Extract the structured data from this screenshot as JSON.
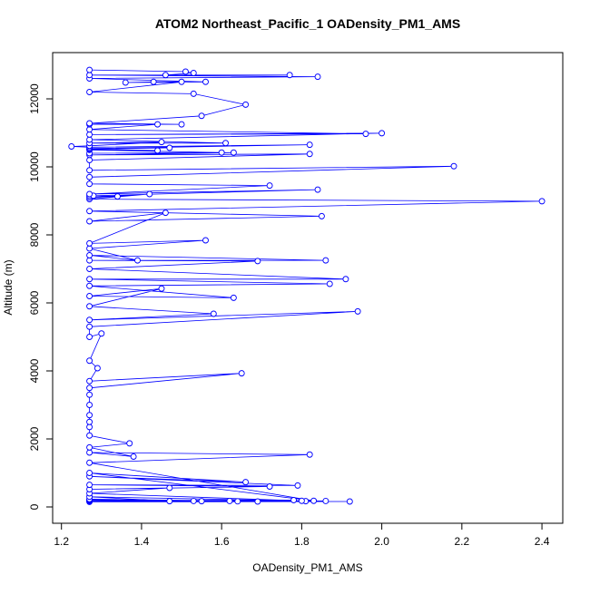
{
  "chart_data": {
    "type": "line",
    "title": "ATOM2 Northeast_Pacific_1 OADensity_PM1_AMS",
    "x_label": "OADensity_PM1_AMS",
    "y_label": "Altitude (m)",
    "xlim": [
      1.178,
      2.452
    ],
    "ylim": [
      -480,
      13360
    ],
    "xticks": [
      1.2,
      1.4,
      1.6,
      1.8,
      {
        "value": 2,
        "label": "2.0"
      },
      2.2,
      2.4
    ],
    "yticks": [
      0,
      2000,
      4000,
      6000,
      8000,
      10000,
      12000
    ],
    "series": [
      {
        "color": "#0000ff",
        "x": [
          1.27,
          1.92,
          1.27,
          1.86,
          1.27,
          1.81,
          1.27,
          1.78,
          1.69,
          1.27,
          1.64,
          1.62,
          1.27,
          1.55,
          1.53,
          1.47,
          1.27,
          1.8,
          1.27,
          1.47,
          1.27,
          1.72,
          1.27,
          1.79,
          1.27,
          1.66,
          1.27,
          1.83,
          1.27,
          1.82,
          1.27,
          1.38,
          1.27,
          1.37,
          1.27,
          1.27,
          1.27,
          1.27,
          1.27,
          1.27,
          1.27,
          1.65,
          1.27,
          1.29,
          1.27,
          1.3,
          1.27,
          1.27,
          1.94,
          1.27,
          1.58,
          1.27,
          1.45,
          1.27,
          1.63,
          1.27,
          1.87,
          1.27,
          1.91,
          1.27,
          1.69,
          1.27,
          1.86,
          1.27,
          1.39,
          1.27,
          1.56,
          1.27,
          1.46,
          1.27,
          1.85,
          1.27,
          2.4,
          1.27,
          1.42,
          1.27,
          1.34,
          1.27,
          1.28,
          1.84,
          1.27,
          1.72,
          1.27,
          1.27,
          2.18,
          1.27,
          1.27,
          1.82,
          1.27,
          1.63,
          1.27,
          1.6,
          1.27,
          1.44,
          1.27,
          1.47,
          1.27,
          1.82,
          1.27,
          1.225,
          1.27,
          1.45,
          1.27,
          1.61,
          1.27,
          2.0,
          1.27,
          1.96,
          1.27,
          1.44,
          1.27,
          1.5,
          1.27,
          1.55,
          1.66,
          1.53,
          1.27,
          1.5,
          1.43,
          1.36,
          1.56,
          1.27,
          1.84,
          1.27,
          1.77,
          1.46,
          1.53,
          1.51,
          1.27
        ],
        "values": [
          150,
          160,
          170,
          175,
          180,
          170,
          190,
          200,
          160,
          210,
          165,
          175,
          230,
          170,
          175,
          170,
          300,
          180,
          400,
          560,
          520,
          600,
          650,
          630,
          900,
          730,
          1000,
          180,
          1300,
          1540,
          1600,
          1480,
          1750,
          1870,
          2100,
          2350,
          2500,
          2700,
          3000,
          3300,
          3500,
          3930,
          3700,
          4080,
          4300,
          5100,
          5000,
          5300,
          5750,
          5500,
          5680,
          5900,
          6420,
          6200,
          6150,
          6500,
          6560,
          6700,
          6700,
          7000,
          7230,
          7250,
          7250,
          7400,
          7250,
          7600,
          7840,
          7750,
          8650,
          8400,
          8550,
          8700,
          8990,
          9050,
          9200,
          9100,
          9130,
          9150,
          9150,
          9330,
          9200,
          9450,
          9500,
          9700,
          10020,
          9900,
          10200,
          10380,
          10350,
          10420,
          10400,
          10420,
          10500,
          10480,
          10520,
          10560,
          10540,
          10650,
          10580,
          10600,
          10620,
          10730,
          10700,
          10700,
          10800,
          10990,
          10950,
          10970,
          11100,
          11250,
          11250,
          11250,
          11280,
          11500,
          11830,
          12150,
          12200,
          12500,
          12500,
          12480,
          12500,
          12600,
          12650,
          12700,
          12700,
          12700,
          12760,
          12800,
          12850
        ]
      }
    ]
  }
}
